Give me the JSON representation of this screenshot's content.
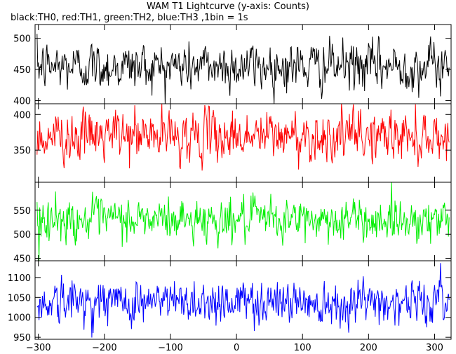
{
  "title": "WAM T1 Lightcurve (y-axis: Counts)",
  "subtitle": "black:TH0, red:TH1, green:TH2, blue:TH3 ,1bin = 1s",
  "chart_data": {
    "type": "line",
    "x_range": [
      -305,
      325
    ],
    "x_ticks": [
      -300,
      -200,
      -100,
      0,
      100,
      200,
      300
    ],
    "x_tick_labels": [
      "−300",
      "−200",
      "−100",
      "0",
      "100",
      "200",
      "300"
    ],
    "panels": [
      {
        "series": "TH0",
        "color": "#000000",
        "ylim": [
          395,
          522
        ],
        "y_ticks": [
          400,
          450,
          500
        ],
        "y_tick_labels": [
          "400",
          "450",
          "500"
        ],
        "mean": 455,
        "sigma": 22,
        "noise_min": 395,
        "noise_max": 522
      },
      {
        "series": "TH1",
        "color": "#ff0000",
        "ylim": [
          305,
          415
        ],
        "y_ticks": [
          350,
          400
        ],
        "y_tick_labels": [
          "350",
          "400"
        ],
        "mean": 370,
        "sigma": 20,
        "noise_min": 305,
        "noise_max": 415
      },
      {
        "series": "TH2",
        "color": "#00ee00",
        "ylim": [
          445,
          608
        ],
        "y_ticks": [
          450,
          500,
          550
        ],
        "y_tick_labels": [
          "450",
          "500",
          "550"
        ],
        "mean": 530,
        "sigma": 25,
        "noise_min": 445,
        "noise_max": 608
      },
      {
        "series": "TH3",
        "color": "#0000ff",
        "ylim": [
          945,
          1142
        ],
        "y_ticks": [
          950,
          1000,
          1050,
          1100
        ],
        "y_tick_labels": [
          "950",
          "1000",
          "1050",
          "1100"
        ],
        "mean": 1040,
        "sigma": 32,
        "noise_min": 945,
        "noise_max": 1142
      }
    ]
  }
}
